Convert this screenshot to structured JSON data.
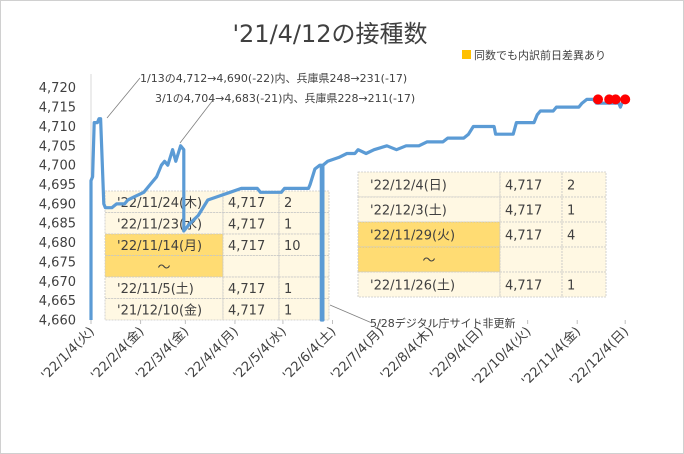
{
  "chart_data": {
    "type": "line",
    "title": "'21/4/12の接種数",
    "x_ticks": [
      "'22/1/4(火)",
      "'22/2/4(金)",
      "'22/3/4(金)",
      "'22/4/4(月)",
      "'22/5/4(水)",
      "'22/6/4(土)",
      "'22/7/4(月)",
      "'22/8/4(木)",
      "'22/9/4(日)",
      "'22/10/4(火)",
      "'22/11/4(金)",
      "'22/12/4(日)"
    ],
    "y_ticks": [
      "4,660",
      "4,665",
      "4,670",
      "4,675",
      "4,680",
      "4,685",
      "4,690",
      "4,695",
      "4,700",
      "4,705",
      "4,710",
      "4,715",
      "4,720"
    ],
    "ylim": [
      4660,
      4722
    ],
    "xlim": [
      "2022-01-04",
      "2022-12-07"
    ],
    "series": [
      {
        "color": "#5b9bd5",
        "points": [
          [
            "2022-01-04",
            4660
          ],
          [
            "2022-01-04",
            4696
          ],
          [
            "2022-01-05",
            4697
          ],
          [
            "2022-01-06",
            4711
          ],
          [
            "2022-01-08",
            4711
          ],
          [
            "2022-01-09",
            4712
          ],
          [
            "2022-01-10",
            4712
          ],
          [
            "2022-01-12",
            4690
          ],
          [
            "2022-01-13",
            4689
          ],
          [
            "2022-01-17",
            4689
          ],
          [
            "2022-01-20",
            4690
          ],
          [
            "2022-01-25",
            4690
          ],
          [
            "2022-01-27",
            4691
          ],
          [
            "2022-02-01",
            4692
          ],
          [
            "2022-02-06",
            4693
          ],
          [
            "2022-02-10",
            4695
          ],
          [
            "2022-02-14",
            4697
          ],
          [
            "2022-02-17",
            4700
          ],
          [
            "2022-02-19",
            4701
          ],
          [
            "2022-02-21",
            4700
          ],
          [
            "2022-02-24",
            4704
          ],
          [
            "2022-02-26",
            4701
          ],
          [
            "2022-03-01",
            4705
          ],
          [
            "2022-03-03",
            4704
          ],
          [
            "2022-03-03",
            4683
          ],
          [
            "2022-03-07",
            4685
          ],
          [
            "2022-03-12",
            4687
          ],
          [
            "2022-03-18",
            4691
          ],
          [
            "2022-03-25",
            4692
          ],
          [
            "2022-04-01",
            4693
          ],
          [
            "2022-04-08",
            4694
          ],
          [
            "2022-04-18",
            4694
          ],
          [
            "2022-04-20",
            4693
          ],
          [
            "2022-05-03",
            4693
          ],
          [
            "2022-05-05",
            4694
          ],
          [
            "2022-05-20",
            4694
          ],
          [
            "2022-05-21",
            4695
          ],
          [
            "2022-05-24",
            4699
          ],
          [
            "2022-05-27",
            4700
          ],
          [
            "2022-05-28",
            4700
          ],
          [
            "2022-05-28",
            4660
          ],
          [
            "2022-05-29",
            4660
          ],
          [
            "2022-05-29",
            4700
          ],
          [
            "2022-06-01",
            4701
          ],
          [
            "2022-06-08",
            4702
          ],
          [
            "2022-06-13",
            4703
          ],
          [
            "2022-06-18",
            4703
          ],
          [
            "2022-06-20",
            4704
          ],
          [
            "2022-06-25",
            4703
          ],
          [
            "2022-06-30",
            4704
          ],
          [
            "2022-07-08",
            4705
          ],
          [
            "2022-07-14",
            4704
          ],
          [
            "2022-07-20",
            4705
          ],
          [
            "2022-07-28",
            4705
          ],
          [
            "2022-08-02",
            4706
          ],
          [
            "2022-08-12",
            4706
          ],
          [
            "2022-08-15",
            4707
          ],
          [
            "2022-08-25",
            4707
          ],
          [
            "2022-08-28",
            4708
          ],
          [
            "2022-08-31",
            4710
          ],
          [
            "2022-09-13",
            4710
          ],
          [
            "2022-09-14",
            4708
          ],
          [
            "2022-09-25",
            4708
          ],
          [
            "2022-09-27",
            4711
          ],
          [
            "2022-10-08",
            4711
          ],
          [
            "2022-10-10",
            4713
          ],
          [
            "2022-10-12",
            4714
          ],
          [
            "2022-10-20",
            4714
          ],
          [
            "2022-10-22",
            4715
          ],
          [
            "2022-11-05",
            4715
          ],
          [
            "2022-11-07",
            4716
          ],
          [
            "2022-11-10",
            4717
          ],
          [
            "2022-11-14",
            4717
          ],
          [
            "2022-11-16",
            4716
          ],
          [
            "2022-11-30",
            4716
          ],
          [
            "2022-12-01",
            4715
          ],
          [
            "2022-12-02",
            4716
          ],
          [
            "2022-12-04",
            4717
          ]
        ]
      }
    ],
    "markers": {
      "color": "#ff0000",
      "points": [
        [
          "2022-11-17",
          4717
        ],
        [
          "2022-11-24",
          4717
        ],
        [
          "2022-11-28",
          4717
        ],
        [
          "2022-12-04",
          4717
        ]
      ]
    },
    "legend": {
      "label": "同数でも内訳前日差異あり",
      "color": "#ffc000",
      "position": "top-right"
    },
    "annotations": {
      "note1": "1/13の4,712→4,690(-22)内、兵庫県248→231(-17)",
      "note2": "3/1の4,704→4,683(-21)内、兵庫県228→211(-17)",
      "note3": "5/28デジタル庁サイト非更新"
    },
    "table_left": {
      "rows": [
        [
          "'22/11/24(木)",
          "4,717",
          "2"
        ],
        [
          "'22/11/23(水)",
          "4,717",
          "1"
        ],
        [
          "'22/11/14(月)",
          "4,717",
          "10"
        ],
        [
          "〜",
          "",
          ""
        ],
        [
          "'22/11/5(土)",
          "4,717",
          "1"
        ],
        [
          "'21/12/10(金)",
          "4,717",
          "1"
        ]
      ]
    },
    "table_right": {
      "rows": [
        [
          "'22/12/4(日)",
          "4,717",
          "2"
        ],
        [
          "'22/12/3(土)",
          "4,717",
          "1"
        ],
        [
          "'22/11/29(火)",
          "4,717",
          "4"
        ],
        [
          "〜",
          "",
          ""
        ],
        [
          "'22/11/26(土)",
          "4,717",
          "1"
        ]
      ]
    },
    "grid": "none"
  }
}
